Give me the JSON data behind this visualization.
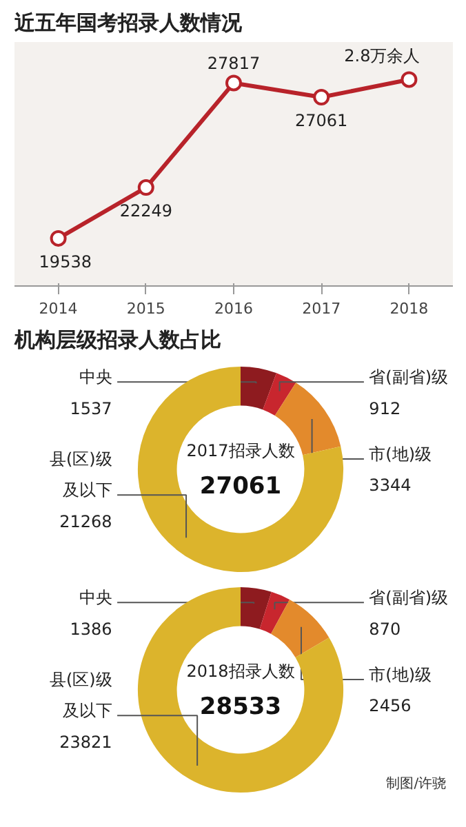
{
  "chart_data": [
    {
      "type": "line",
      "title": "近五年国考招录人数情况",
      "categories": [
        "2014",
        "2015",
        "2016",
        "2017",
        "2018"
      ],
      "series": [
        {
          "color": "#b8232a",
          "values": [
            19538,
            22249,
            27817,
            27061,
            28000
          ],
          "value_labels": [
            "19538",
            "22249",
            "27817",
            "27061",
            null
          ]
        }
      ],
      "annotations": [
        {
          "text": "2.8万余人",
          "x": "2018",
          "y": 28000
        }
      ],
      "ylim": [
        17000,
        30000
      ],
      "tick_labels": "x",
      "grid": false,
      "marker": "circle",
      "line_style": "solid"
    },
    {
      "type": "donut",
      "title": "机构层级招录人数占比",
      "categories": [
        "中央",
        "省(副省)级",
        "市(地)级",
        "县(区)级及以下"
      ],
      "values": [
        1537,
        912,
        3344,
        21268
      ],
      "colors": [
        "#8e1b1f",
        "#c8262e",
        "#e38a2c",
        "#dcb42c"
      ],
      "data_labels": true,
      "annotations": [
        "2017招录人数",
        "27061"
      ]
    },
    {
      "type": "donut",
      "categories": [
        "中央",
        "省(副省)级",
        "市(地)级",
        "县(区)级及以下"
      ],
      "values": [
        1386,
        870,
        2456,
        23821
      ],
      "colors": [
        "#8e1b1f",
        "#c8262e",
        "#e38a2c",
        "#dcb42c"
      ],
      "data_labels": true,
      "annotations": [
        "2018招录人数",
        "28533",
        "制图/许骁"
      ]
    }
  ]
}
